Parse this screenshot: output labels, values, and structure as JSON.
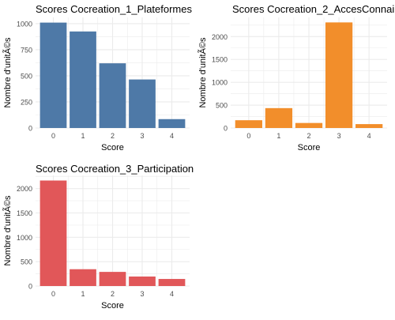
{
  "figure": {
    "background": "#ffffff",
    "grid_color": "#ebebeb",
    "text_color": "#000000",
    "tick_color": "#4d4d4d"
  },
  "chart_data": [
    {
      "type": "bar",
      "title": "Scores Cocreation_1_Plateformes",
      "xlabel": "Score",
      "ylabel": "Nombre d'unitÃ©s",
      "categories": [
        "0",
        "1",
        "2",
        "3",
        "4"
      ],
      "values": [
        1010,
        925,
        620,
        465,
        85
      ],
      "yticks": [
        0,
        250,
        500,
        750,
        1000
      ],
      "ylim": [
        0,
        1060
      ],
      "color": "#4e79a7",
      "grid": true
    },
    {
      "type": "bar",
      "title": "Scores Cocreation_2_AccesConnai",
      "xlabel": "Score",
      "ylabel": "Nombre d'unitÃ©s",
      "categories": [
        "0",
        "1",
        "2",
        "3",
        "4"
      ],
      "values": [
        170,
        435,
        110,
        2310,
        85
      ],
      "yticks": [
        0,
        500,
        1000,
        1500,
        2000
      ],
      "ylim": [
        0,
        2420
      ],
      "color": "#f28e2b",
      "grid": true
    },
    {
      "type": "bar",
      "title": "Scores Cocreation_3_Participation",
      "xlabel": "Score",
      "ylabel": "Nombre d'unitÃ©s",
      "categories": [
        "0",
        "1",
        "2",
        "3",
        "4"
      ],
      "values": [
        2165,
        345,
        290,
        195,
        145
      ],
      "yticks": [
        0,
        500,
        1000,
        1500,
        2000
      ],
      "ylim": [
        0,
        2270
      ],
      "color": "#e15759",
      "grid": true
    }
  ]
}
